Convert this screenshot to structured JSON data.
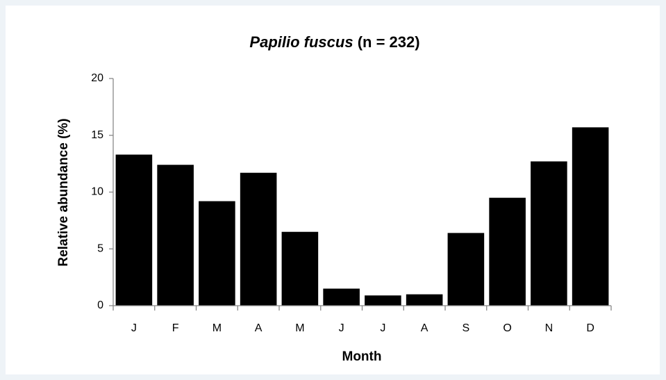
{
  "chart_data": {
    "type": "bar",
    "title": [
      "Papilio  fuscus",
      "(n = 232)"
    ],
    "xlabel": "Month",
    "ylabel": "Relative abundance  (%)",
    "categories": [
      "J",
      "F",
      "M",
      "A",
      "M",
      "J",
      "J",
      "A",
      "S",
      "O",
      "N",
      "D"
    ],
    "values": [
      13.3,
      12.4,
      9.2,
      11.7,
      6.5,
      1.5,
      0.9,
      1.0,
      6.4,
      9.5,
      12.7,
      15.7
    ],
    "color": "#000000",
    "ylim": [
      0,
      20
    ],
    "yticks": [
      0,
      5,
      10,
      15,
      20
    ],
    "grid": false
  }
}
